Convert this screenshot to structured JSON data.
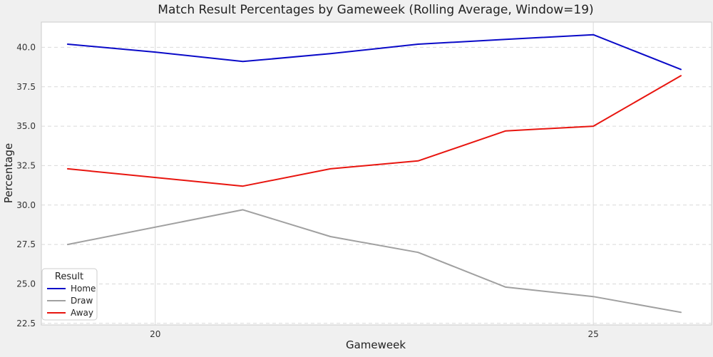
{
  "chart_data": {
    "type": "line",
    "title": "Match Result Percentages by Gameweek (Rolling Average, Window=19)",
    "xlabel": "Gameweek",
    "ylabel": "Percentage",
    "x": [
      19,
      20,
      21,
      22,
      23,
      24,
      25,
      26
    ],
    "xlim": [
      18.7,
      26.35
    ],
    "ylim": [
      22.4,
      41.6
    ],
    "xticks": [
      20,
      25
    ],
    "yticks": [
      22.5,
      25.0,
      27.5,
      30.0,
      32.5,
      35.0,
      37.5,
      40.0
    ],
    "grid": true,
    "legend": {
      "title": "Result",
      "position": "lower-left"
    },
    "series": [
      {
        "name": "Home",
        "color": "#0a0ac8",
        "x": [
          19,
          20,
          21,
          22,
          23,
          24,
          25,
          26
        ],
        "values": [
          40.2,
          39.7,
          39.1,
          39.6,
          40.2,
          40.5,
          40.8,
          38.6
        ]
      },
      {
        "name": "Draw",
        "color": "#a0a0a0",
        "x": [
          19,
          21,
          22,
          23,
          24,
          25,
          26
        ],
        "values": [
          27.5,
          29.7,
          28.0,
          27.0,
          24.8,
          24.2,
          23.2
        ]
      },
      {
        "name": "Away",
        "color": "#e8150f",
        "x": [
          19,
          21,
          22,
          23,
          24,
          25,
          26
        ],
        "values": [
          32.3,
          31.2,
          32.3,
          32.8,
          34.7,
          35.0,
          38.2
        ]
      }
    ]
  }
}
